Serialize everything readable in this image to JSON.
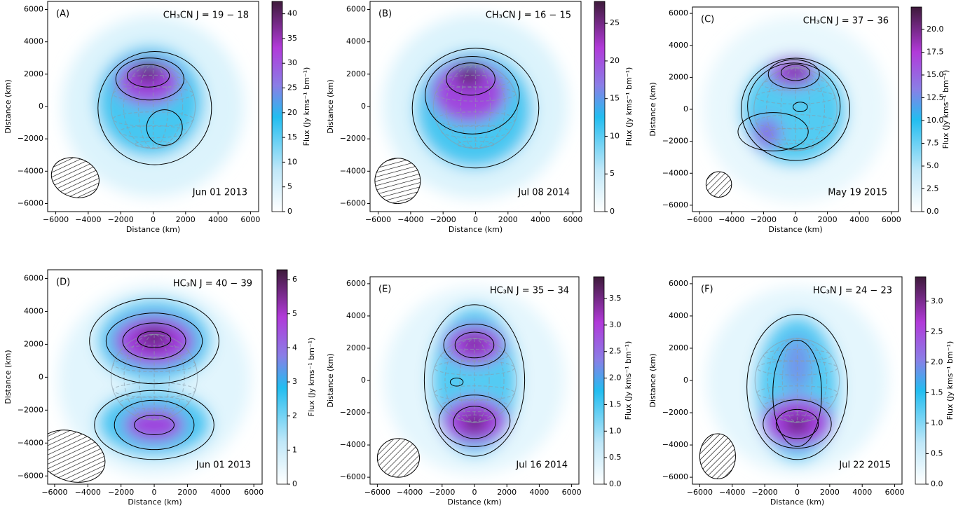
{
  "chart_data": [
    {
      "type": "heatmap",
      "panel_label": "(A)",
      "title": "CH₃CN J = 19 − 18",
      "date": "Jun 01 2013",
      "xlabel": "Distance (km)",
      "ylabel": "Distance (km)",
      "colorbar_label": "Flux (Jy kms⁻¹ bm⁻¹)",
      "xlim": [
        -6500,
        6500
      ],
      "ylim": [
        -6500,
        6500
      ],
      "xticks": [
        {
          "value": -6000,
          "label": "−6000"
        },
        {
          "value": -4000,
          "label": "−4000"
        },
        {
          "value": -2000,
          "label": "−2000"
        },
        0,
        2000,
        4000,
        6000
      ],
      "yticks": [
        {
          "value": -6000,
          "label": "−6000"
        },
        {
          "value": -4000,
          "label": "−4000"
        },
        {
          "value": -2000,
          "label": "−2000"
        },
        0,
        2000,
        4000,
        6000
      ],
      "clim": [
        0,
        42.5
      ],
      "cticks": [
        0,
        5,
        10,
        15,
        20,
        25,
        30,
        35,
        40
      ]
    },
    {
      "type": "heatmap",
      "panel_label": "(B)",
      "title": "CH₃CN J = 16 − 15",
      "date": "Jul 08 2014",
      "xlabel": "Distance (km)",
      "ylabel": "Distance (km)",
      "colorbar_label": "Flux (Jy kms⁻¹ bm⁻¹)",
      "xlim": [
        -6500,
        6500
      ],
      "ylim": [
        -6500,
        6500
      ],
      "xticks": [
        {
          "value": -6000,
          "label": "−6000"
        },
        {
          "value": -4000,
          "label": "−4000"
        },
        {
          "value": -2000,
          "label": "−2000"
        },
        0,
        2000,
        4000,
        6000
      ],
      "yticks": [
        {
          "value": -6000,
          "label": "−6000"
        },
        {
          "value": -4000,
          "label": "−4000"
        },
        {
          "value": -2000,
          "label": "−2000"
        },
        0,
        2000,
        4000,
        6000
      ],
      "clim": [
        0,
        27.9
      ],
      "cticks": [
        0,
        5,
        10,
        15,
        20,
        25
      ]
    },
    {
      "type": "heatmap",
      "panel_label": "(C)",
      "title": "CH₃CN J = 37 − 36",
      "date": "May 19 2015",
      "xlabel": "Distance (km)",
      "ylabel": "Distance (km)",
      "colorbar_label": "Flux (Jy kms⁻¹ bm⁻¹)",
      "xlim": [
        -6450,
        6450
      ],
      "ylim": [
        -6400,
        6400
      ],
      "xticks": [
        {
          "value": -6000,
          "label": "−6000"
        },
        {
          "value": -4000,
          "label": "−4000"
        },
        {
          "value": -2000,
          "label": "−2000"
        },
        0,
        2000,
        4000,
        6000
      ],
      "yticks": [
        {
          "value": -6000,
          "label": "−6000"
        },
        {
          "value": -4000,
          "label": "−4000"
        },
        {
          "value": -2000,
          "label": "−2000"
        },
        0,
        2000,
        4000,
        6000
      ],
      "clim": [
        0,
        22.46
      ],
      "cticks": [
        {
          "value": 0,
          "label": "0.0"
        },
        2.5,
        {
          "value": 5,
          "label": "5.0"
        },
        7.5,
        {
          "value": 10,
          "label": "10.0"
        },
        12.5,
        {
          "value": 15,
          "label": "15.0"
        },
        17.5,
        {
          "value": 20,
          "label": "20.0"
        }
      ]
    },
    {
      "type": "heatmap",
      "panel_label": "(D)",
      "title": "HC₃N J = 40 − 39",
      "date": "Jun 01 2013",
      "xlabel": "Distance (km)",
      "ylabel": "Distance (km)",
      "colorbar_label": "Flux (Jy kms⁻¹ bm⁻¹)",
      "xlim": [
        -6420,
        6500
      ],
      "ylim": [
        -6500,
        6530
      ],
      "xticks": [
        {
          "value": -6000,
          "label": "−6000"
        },
        {
          "value": -4000,
          "label": "−4000"
        },
        {
          "value": -2000,
          "label": "−2000"
        },
        0,
        2000,
        4000,
        6000
      ],
      "yticks": [
        {
          "value": -6000,
          "label": "−6000"
        },
        {
          "value": -4000,
          "label": "−4000"
        },
        {
          "value": -2000,
          "label": "−2000"
        },
        0,
        2000,
        4000,
        6000
      ],
      "clim": [
        0,
        6.29
      ],
      "cticks": [
        0,
        1,
        2,
        3,
        4,
        5,
        6
      ]
    },
    {
      "type": "heatmap",
      "panel_label": "(E)",
      "title": "HC₃N J = 35 − 34",
      "date": "Jul 16 2014",
      "xlabel": "Distance (km)",
      "ylabel": "Distance (km)",
      "colorbar_label": "Flux (Jy kms⁻¹ bm⁻¹)",
      "xlim": [
        -6450,
        6450
      ],
      "ylim": [
        -6430,
        6430
      ],
      "xticks": [
        {
          "value": -6000,
          "label": "−6000"
        },
        {
          "value": -4000,
          "label": "−4000"
        },
        {
          "value": -2000,
          "label": "−2000"
        },
        0,
        2000,
        4000,
        6000
      ],
      "yticks": [
        {
          "value": -6000,
          "label": "−6000"
        },
        {
          "value": -4000,
          "label": "−4000"
        },
        {
          "value": -2000,
          "label": "−2000"
        },
        0,
        2000,
        4000,
        6000
      ],
      "clim": [
        0,
        3.91
      ],
      "cticks": [
        {
          "value": 0,
          "label": "0.0"
        },
        0.5,
        {
          "value": 1,
          "label": "1.0"
        },
        1.5,
        {
          "value": 2,
          "label": "2.0"
        },
        2.5,
        {
          "value": 3,
          "label": "3.0"
        },
        3.5
      ]
    },
    {
      "type": "heatmap",
      "panel_label": "(F)",
      "title": "HC₃N J = 24 − 23",
      "date": "Jul 22 2015",
      "xlabel": "Distance (km)",
      "ylabel": "Distance (km)",
      "colorbar_label": "Flux (Jy kms⁻¹ bm⁻¹)",
      "xlim": [
        -6450,
        6450
      ],
      "ylim": [
        -6430,
        6430
      ],
      "xticks": [
        {
          "value": -6000,
          "label": "−6000"
        },
        {
          "value": -4000,
          "label": "−4000"
        },
        {
          "value": -2000,
          "label": "−2000"
        },
        0,
        2000,
        4000,
        6000
      ],
      "yticks": [
        {
          "value": -6000,
          "label": "−6000"
        },
        {
          "value": -4000,
          "label": "−4000"
        },
        {
          "value": -2000,
          "label": "−2000"
        },
        0,
        2000,
        4000,
        6000
      ],
      "clim": [
        0,
        3.4
      ],
      "cticks": [
        {
          "value": 0,
          "label": "0.0"
        },
        0.5,
        {
          "value": 1,
          "label": "1.0"
        },
        1.5,
        {
          "value": 2,
          "label": "2.0"
        },
        2.5,
        {
          "value": 3,
          "label": "3.0"
        }
      ]
    }
  ]
}
